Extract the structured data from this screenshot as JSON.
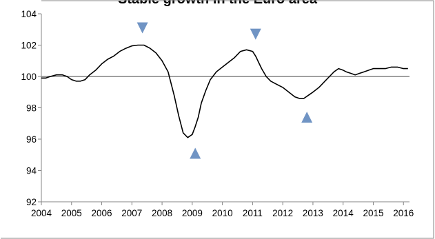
{
  "chart_data": {
    "type": "line",
    "title": "Stable growth in the Euro area",
    "xlabel": "",
    "ylabel": "",
    "xlim": [
      2004.0,
      2016.2
    ],
    "ylim": [
      92,
      104
    ],
    "yticks": [
      92,
      94,
      96,
      98,
      100,
      102,
      104
    ],
    "xticks": [
      2004,
      2005,
      2006,
      2007,
      2008,
      2009,
      2010,
      2011,
      2012,
      2013,
      2014,
      2015,
      2016
    ],
    "reference_line": 100,
    "grid": false,
    "colors": {
      "line": "#000000",
      "reference": "#808080",
      "marker": "#7094c4",
      "axis": "#868686"
    },
    "series": [
      {
        "x": [
          2004.0,
          2004.15,
          2004.3,
          2004.5,
          2004.7,
          2004.85,
          2005.0,
          2005.15,
          2005.3,
          2005.45,
          2005.6,
          2005.8,
          2006.0,
          2006.2,
          2006.4,
          2006.6,
          2006.8,
          2007.0,
          2007.2,
          2007.4,
          2007.6,
          2007.8,
          2008.0,
          2008.2,
          2008.4,
          2008.55,
          2008.7,
          2008.85,
          2009.0,
          2009.1,
          2009.2,
          2009.3,
          2009.45,
          2009.6,
          2009.8,
          2010.0,
          2010.2,
          2010.4,
          2010.6,
          2010.8,
          2011.0,
          2011.1,
          2011.2,
          2011.3,
          2011.45,
          2011.6,
          2011.8,
          2012.0,
          2012.2,
          2012.4,
          2012.55,
          2012.7,
          2012.85,
          2013.0,
          2013.2,
          2013.4,
          2013.55,
          2013.7,
          2013.85,
          2014.0,
          2014.1,
          2014.25,
          2014.4,
          2014.55,
          2014.7,
          2014.85,
          2015.0,
          2015.2,
          2015.4,
          2015.6,
          2015.8,
          2016.0,
          2016.15
        ],
        "y": [
          99.9,
          99.9,
          100.0,
          100.1,
          100.1,
          100.0,
          99.8,
          99.7,
          99.7,
          99.8,
          100.1,
          100.4,
          100.8,
          101.1,
          101.3,
          101.6,
          101.8,
          101.95,
          102.0,
          102.0,
          101.8,
          101.5,
          101.0,
          100.3,
          98.8,
          97.5,
          96.4,
          96.1,
          96.3,
          96.8,
          97.4,
          98.3,
          99.1,
          99.8,
          100.3,
          100.6,
          100.9,
          101.2,
          101.6,
          101.7,
          101.6,
          101.3,
          100.9,
          100.5,
          100.0,
          99.7,
          99.5,
          99.3,
          99.0,
          98.7,
          98.6,
          98.6,
          98.8,
          99.0,
          99.3,
          99.7,
          100.0,
          100.3,
          100.5,
          100.4,
          100.3,
          100.2,
          100.1,
          100.2,
          100.3,
          100.4,
          100.5,
          100.5,
          100.5,
          100.6,
          100.6,
          100.5,
          100.5
        ]
      }
    ],
    "markers": [
      {
        "shape": "triangle-down",
        "x": 2007.35,
        "y": 103.1
      },
      {
        "shape": "triangle-up",
        "x": 2009.1,
        "y": 95.1
      },
      {
        "shape": "triangle-down",
        "x": 2011.1,
        "y": 102.7
      },
      {
        "shape": "triangle-up",
        "x": 2012.8,
        "y": 97.4
      }
    ]
  }
}
